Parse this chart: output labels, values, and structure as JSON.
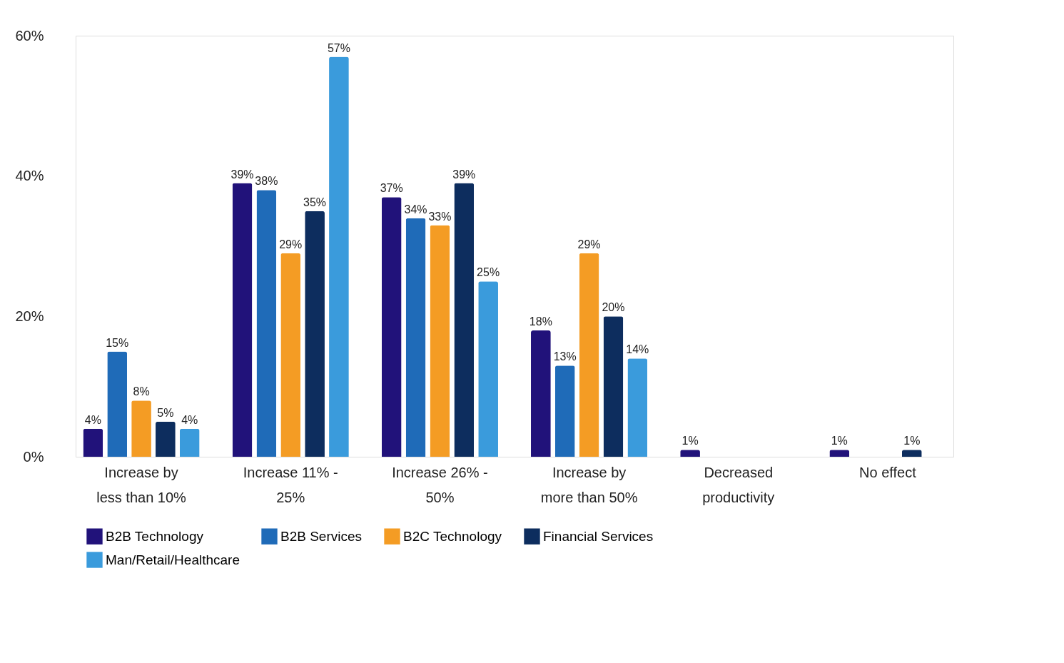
{
  "chart_data": {
    "type": "bar",
    "categories": [
      "Increase by less than 10%",
      "Increase 11% - 25%",
      "Increase 26% - 50%",
      "Increase by more than 50%",
      "Decreased productivity",
      "No effect"
    ],
    "series": [
      {
        "name": "B2B Technology",
        "color": "#21127a",
        "values": [
          4,
          39,
          37,
          18,
          1,
          1
        ],
        "value_labels": [
          "4%",
          "39%",
          "37%",
          "18%",
          "1%",
          "1%"
        ]
      },
      {
        "name": "B2B Services",
        "color": "#1f6bb8",
        "values": [
          15,
          38,
          34,
          13,
          null,
          null
        ],
        "value_labels": [
          "15%",
          "38%",
          "34%",
          "13%",
          null,
          null
        ]
      },
      {
        "name": "B2C Technology",
        "color": "#f49c24",
        "values": [
          8,
          29,
          33,
          29,
          null,
          null
        ],
        "value_labels": [
          "8%",
          "29%",
          "33%",
          "29%",
          null,
          null
        ]
      },
      {
        "name": "Financial Services",
        "color": "#0d2d5e",
        "values": [
          5,
          35,
          39,
          20,
          null,
          1
        ],
        "value_labels": [
          "5%",
          "35%",
          "39%",
          "20%",
          null,
          "1%"
        ]
      },
      {
        "name": "Man/Retail/Healthcare",
        "color": "#3a9bdc",
        "values": [
          4,
          57,
          25,
          14,
          null,
          null
        ],
        "value_labels": [
          "4%",
          "57%",
          "25%",
          "14%",
          null,
          null
        ]
      }
    ],
    "ylim": [
      0,
      60
    ],
    "yticks": [
      {
        "value": 0,
        "label": "0%"
      },
      {
        "value": 20,
        "label": "20%"
      },
      {
        "value": 40,
        "label": "40%"
      },
      {
        "value": 60,
        "label": "60%"
      }
    ],
    "grid": false,
    "legend": "bottom"
  }
}
